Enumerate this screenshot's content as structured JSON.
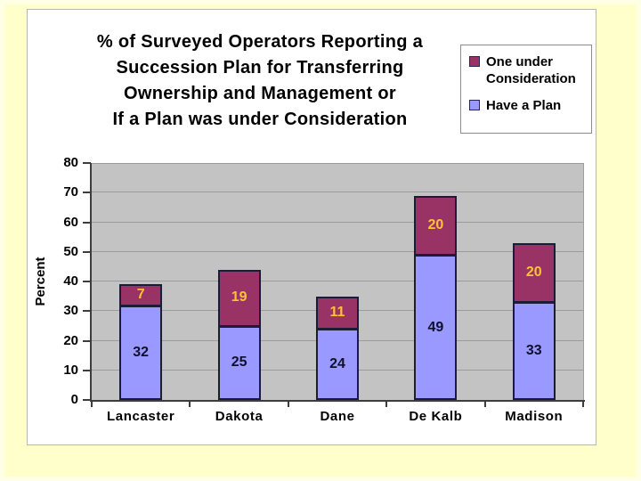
{
  "page": {
    "slide_background": "#FFFFCC",
    "panel_background": "#FFFFFF"
  },
  "chart_data": {
    "type": "bar",
    "stacked": true,
    "title": "% of Surveyed Operators Reporting a\nSuccession Plan for Transferring\nOwnership and Management or\nIf a Plan was under Consideration",
    "categories": [
      "Lancaster",
      "Dakota",
      "Dane",
      "De Kalb",
      "Madison"
    ],
    "series": [
      {
        "name": "Have a Plan",
        "color": "#9999FF",
        "label_color": "#10102c",
        "values": [
          32,
          25,
          24,
          49,
          33
        ]
      },
      {
        "name": "One under Consideration",
        "color": "#993366",
        "label_color": "#FFC233",
        "values": [
          7,
          19,
          11,
          20,
          20
        ]
      }
    ],
    "ylabel": "Percent",
    "ylim": [
      0,
      80
    ],
    "ytick_step": 10,
    "ytick_labels": [
      "0",
      "10",
      "20",
      "30",
      "40",
      "50",
      "60",
      "70",
      "80"
    ],
    "grid": true,
    "plot_background": "#C3C3C3",
    "legend": {
      "position": "top-right",
      "entries": [
        {
          "label": "One under\nConsideration",
          "color": "#993366"
        },
        {
          "label": "Have a Plan",
          "color": "#9999FF"
        }
      ]
    }
  }
}
